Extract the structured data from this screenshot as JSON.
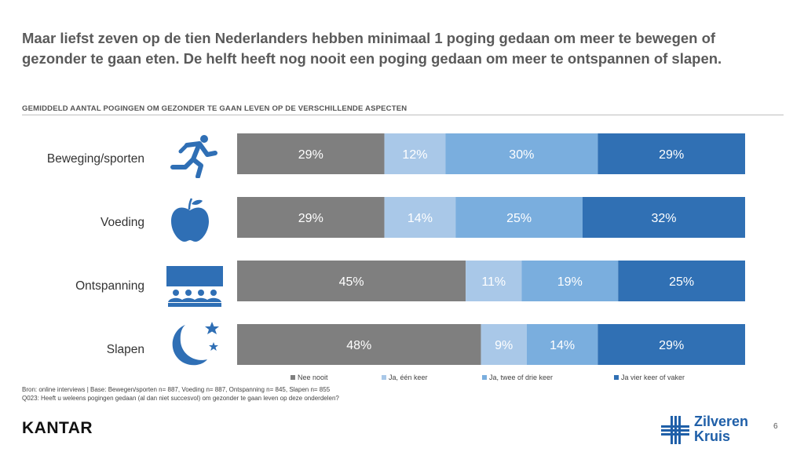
{
  "headline": "Maar liefst zeven op de tien Nederlanders hebben minimaal 1 poging gedaan om meer te bewegen of gezonder te gaan eten. De helft heeft nog nooit een poging gedaan om meer te ontspannen of slapen.",
  "chart_data": {
    "type": "bar",
    "orientation": "horizontal-stacked-100",
    "title": "GEMIDDELD AANTAL POGINGEN OM GEZONDER TE GAAN LEVEN OP DE VERSCHILLENDE ASPECTEN",
    "categories": [
      "Beweging/sporten",
      "Voeding",
      "Ontspanning",
      "Slapen"
    ],
    "series": [
      {
        "name": "Nee nooit",
        "color": "#7f7f7f",
        "values": [
          29,
          29,
          45,
          48
        ]
      },
      {
        "name": "Ja, één keer",
        "color": "#a9c8e8",
        "values": [
          12,
          14,
          11,
          9
        ]
      },
      {
        "name": "Ja, twee of drie keer",
        "color": "#7aaede",
        "values": [
          30,
          25,
          19,
          14
        ]
      },
      {
        "name": "Ja vier keer of vaker",
        "color": "#3070b4",
        "values": [
          29,
          32,
          25,
          29
        ]
      }
    ],
    "value_suffix": "%",
    "legend_position": "bottom"
  },
  "icons": [
    "running-person-icon",
    "apple-icon",
    "theater-audience-icon",
    "moon-stars-icon"
  ],
  "footer": {
    "source_line1": "Bron: online interviews | Base: Bewegen/sporten n= 887, Voeding n= 887, Ontspanning n= 845, Slapen n= 855",
    "source_line2": "Q023: Heeft u weleens pogingen gedaan (al dan niet succesvol) om gezonder te gaan leven op deze onderdelen?",
    "kantar": "KANTAR",
    "brand_line1": "Zilveren",
    "brand_line2": "Kruis",
    "page_number": "6"
  },
  "colors": {
    "icon": "#2f6fb5",
    "brand": "#1f5fa8"
  }
}
